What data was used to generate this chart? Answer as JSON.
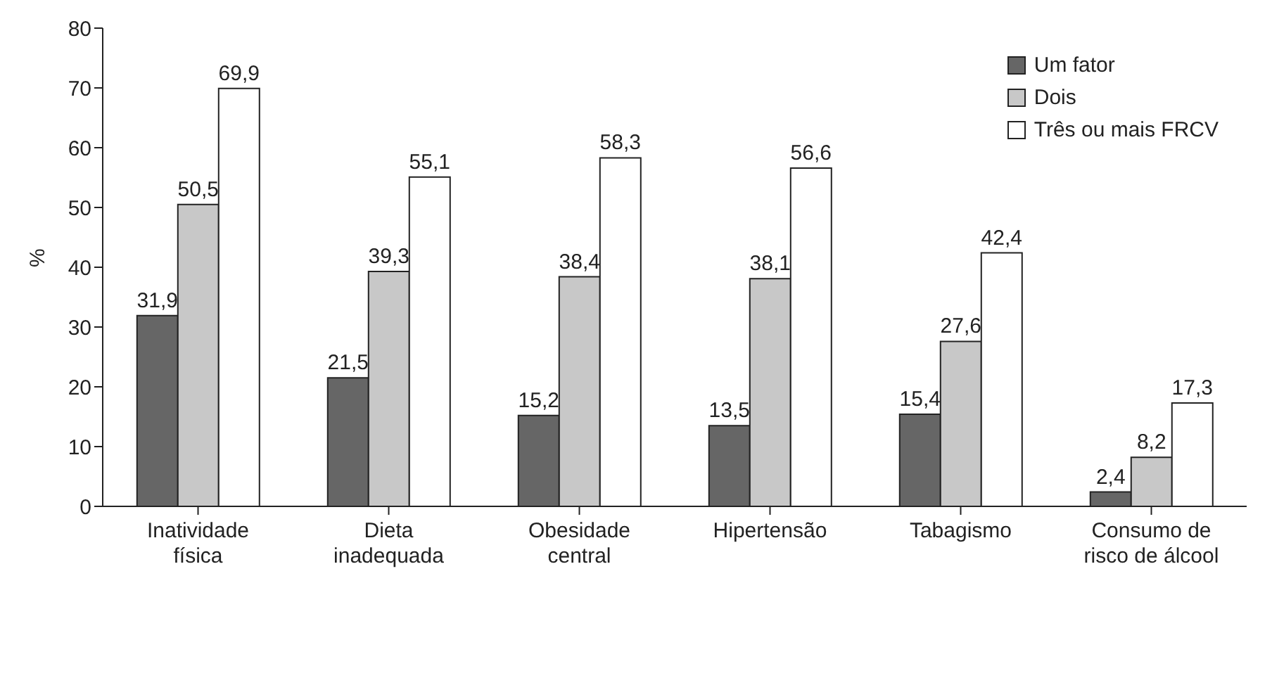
{
  "chart_data": {
    "type": "bar",
    "ylabel": "%",
    "categories": [
      "Inatividade física",
      "Dieta inadequada",
      "Obesidade central",
      "Hipertensão",
      "Tabagismo",
      "Consumo de risco de álcool"
    ],
    "series": [
      {
        "name": "Um fator",
        "color": "#666666",
        "values": [
          31.9,
          21.5,
          15.2,
          13.5,
          15.4,
          2.4
        ],
        "value_labels": [
          "31,9",
          "21,5",
          "15,2",
          "13,5",
          "15,4",
          "2,4"
        ]
      },
      {
        "name": "Dois",
        "color": "#c8c8c8",
        "values": [
          50.5,
          39.3,
          38.4,
          38.1,
          27.6,
          8.2
        ],
        "value_labels": [
          "50,5",
          "39,3",
          "38,4",
          "38,1",
          "27,6",
          "8,2"
        ]
      },
      {
        "name": "Três ou mais FRCV",
        "color": "#ffffff",
        "values": [
          69.9,
          55.1,
          58.3,
          56.6,
          42.4,
          17.3
        ],
        "value_labels": [
          "69,9",
          "55,1",
          "58,3",
          "56,6",
          "42,4",
          "17,3"
        ]
      }
    ],
    "ylim": [
      0,
      80
    ],
    "yticks": [
      0,
      10,
      20,
      30,
      40,
      50,
      60,
      70,
      80
    ],
    "grid": false,
    "legend": "top right"
  }
}
